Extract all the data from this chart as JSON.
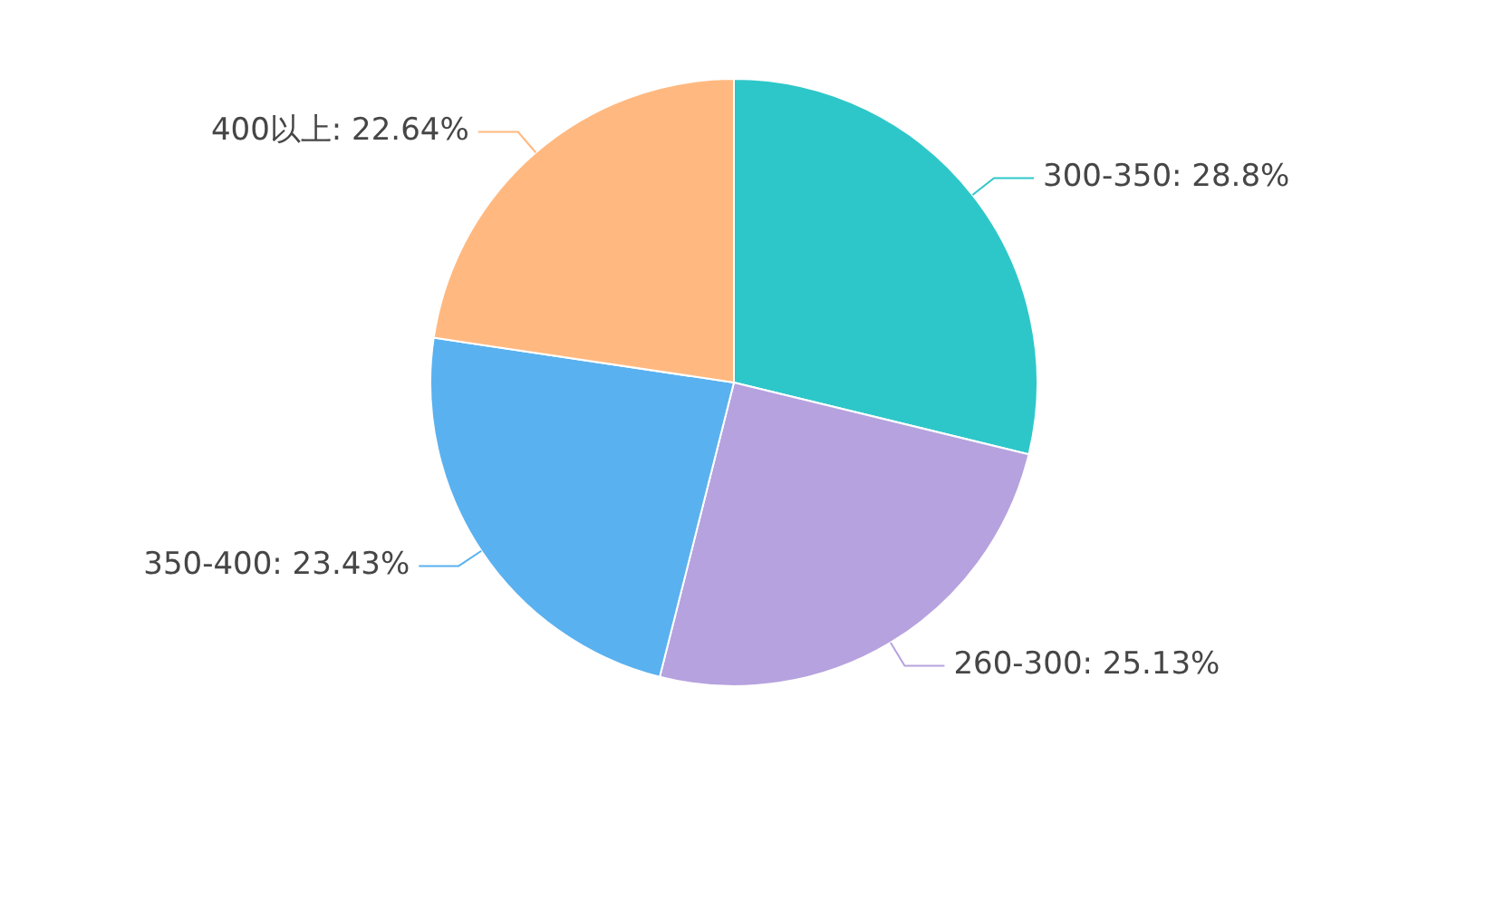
{
  "chart_data": {
    "type": "pie",
    "categories": [
      "300-350",
      "260-300",
      "350-400",
      "400以上"
    ],
    "values": [
      28.8,
      25.13,
      23.43,
      22.64
    ],
    "value_labels": [
      "28.8%",
      "25.13%",
      "23.43%",
      "22.64%"
    ],
    "colors": [
      "#2ec7c9",
      "#b6a2de",
      "#5ab1ef",
      "#ffb980"
    ],
    "legend": false
  }
}
